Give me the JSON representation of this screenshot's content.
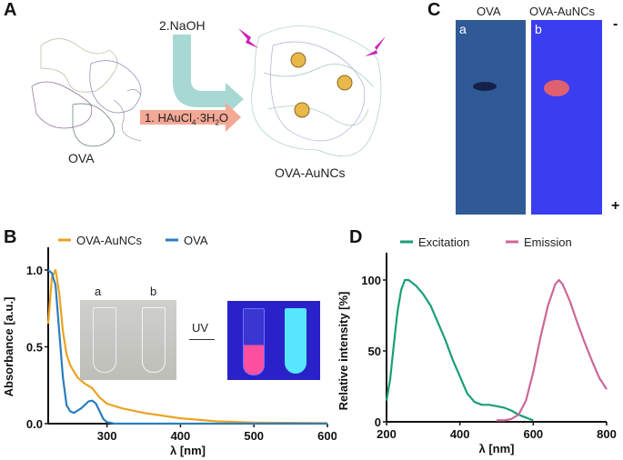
{
  "panels": {
    "a": "A",
    "b": "B",
    "c": "C",
    "d": "D"
  },
  "panel_a": {
    "step2": "2.NaOH",
    "step1": "1. HAuCl",
    "step1_sub": "4",
    "step1_mid": "·3H",
    "step1_sub2": "2",
    "step1_end": "O",
    "left_label": "OVA",
    "right_label": "OVA-AuNCs",
    "colors": {
      "teal_arrow": "#a8d8d4",
      "salmon_arrow": "#f4a896",
      "lightning": "#cc22bb",
      "cluster": "#e8b84a"
    }
  },
  "panel_c": {
    "lane_a_title": "OVA",
    "lane_b_title": "OVA-AuNCs",
    "lane_a_letter": "a",
    "lane_b_letter": "b",
    "minus": "-",
    "plus": "+",
    "colors": {
      "lane_a": "#2f5a96",
      "lane_b": "#3a3ef0",
      "band_a": "#14214a",
      "band_b": "#e06070"
    }
  },
  "panel_b_inset": {
    "label_a": "a",
    "label_b": "b",
    "arrow_label": "UV"
  },
  "chart_data": [
    {
      "type": "line",
      "panel": "B",
      "xlabel": "λ [nm]",
      "ylabel": "Absorbance [a.u.]",
      "xlim": [
        220,
        600
      ],
      "ylim": [
        0,
        1.1
      ],
      "xticks": [
        "300",
        "400",
        "500",
        "600"
      ],
      "yticks": [
        "0.0",
        "0.5",
        "1.0"
      ],
      "legend": "top",
      "series": [
        {
          "name": "OVA-AuNCs",
          "color": "#eba31f",
          "points": [
            [
              220,
              0.65
            ],
            [
              225,
              0.95
            ],
            [
              230,
              1.0
            ],
            [
              235,
              0.85
            ],
            [
              240,
              0.6
            ],
            [
              245,
              0.45
            ],
            [
              250,
              0.38
            ],
            [
              260,
              0.3
            ],
            [
              270,
              0.26
            ],
            [
              280,
              0.23
            ],
            [
              290,
              0.17
            ],
            [
              300,
              0.13
            ],
            [
              320,
              0.1
            ],
            [
              350,
              0.07
            ],
            [
              400,
              0.035
            ],
            [
              450,
              0.015
            ],
            [
              500,
              0.007
            ],
            [
              600,
              0.003
            ]
          ]
        },
        {
          "name": "OVA",
          "color": "#2a7dc0",
          "points": [
            [
              220,
              1.0
            ],
            [
              225,
              0.98
            ],
            [
              230,
              0.9
            ],
            [
              235,
              0.6
            ],
            [
              240,
              0.3
            ],
            [
              245,
              0.12
            ],
            [
              250,
              0.08
            ],
            [
              255,
              0.07
            ],
            [
              265,
              0.1
            ],
            [
              275,
              0.145
            ],
            [
              280,
              0.15
            ],
            [
              285,
              0.13
            ],
            [
              290,
              0.08
            ],
            [
              295,
              0.03
            ],
            [
              300,
              0.01
            ],
            [
              310,
              0
            ],
            [
              600,
              0
            ]
          ]
        }
      ]
    },
    {
      "type": "line",
      "panel": "D",
      "xlabel": "λ [nm]",
      "ylabel": "Relative intensity [%]",
      "xlim": [
        200,
        800
      ],
      "ylim": [
        0,
        120
      ],
      "xticks": [
        "200",
        "400",
        "600",
        "800"
      ],
      "yticks": [
        "0",
        "50",
        "100"
      ],
      "legend": "top",
      "series": [
        {
          "name": "Excitation",
          "color": "#1a9e77",
          "points": [
            [
              200,
              15
            ],
            [
              210,
              30
            ],
            [
              220,
              55
            ],
            [
              230,
              78
            ],
            [
              240,
              93
            ],
            [
              250,
              100
            ],
            [
              260,
              100
            ],
            [
              280,
              96
            ],
            [
              300,
              90
            ],
            [
              320,
              82
            ],
            [
              340,
              70
            ],
            [
              360,
              58
            ],
            [
              380,
              44
            ],
            [
              400,
              32
            ],
            [
              420,
              20
            ],
            [
              440,
              14
            ],
            [
              460,
              12
            ],
            [
              480,
              12
            ],
            [
              500,
              11
            ],
            [
              520,
              10
            ],
            [
              540,
              8
            ],
            [
              560,
              5
            ],
            [
              580,
              3
            ],
            [
              600,
              1
            ]
          ]
        },
        {
          "name": "Emission",
          "color": "#cc6699",
          "points": [
            [
              500,
              1
            ],
            [
              520,
              1
            ],
            [
              540,
              2
            ],
            [
              560,
              5
            ],
            [
              580,
              15
            ],
            [
              600,
              35
            ],
            [
              620,
              60
            ],
            [
              640,
              82
            ],
            [
              660,
              97
            ],
            [
              670,
              100
            ],
            [
              680,
              97
            ],
            [
              700,
              85
            ],
            [
              720,
              70
            ],
            [
              740,
              56
            ],
            [
              760,
              43
            ],
            [
              780,
              31
            ],
            [
              800,
              23
            ]
          ]
        }
      ]
    }
  ]
}
